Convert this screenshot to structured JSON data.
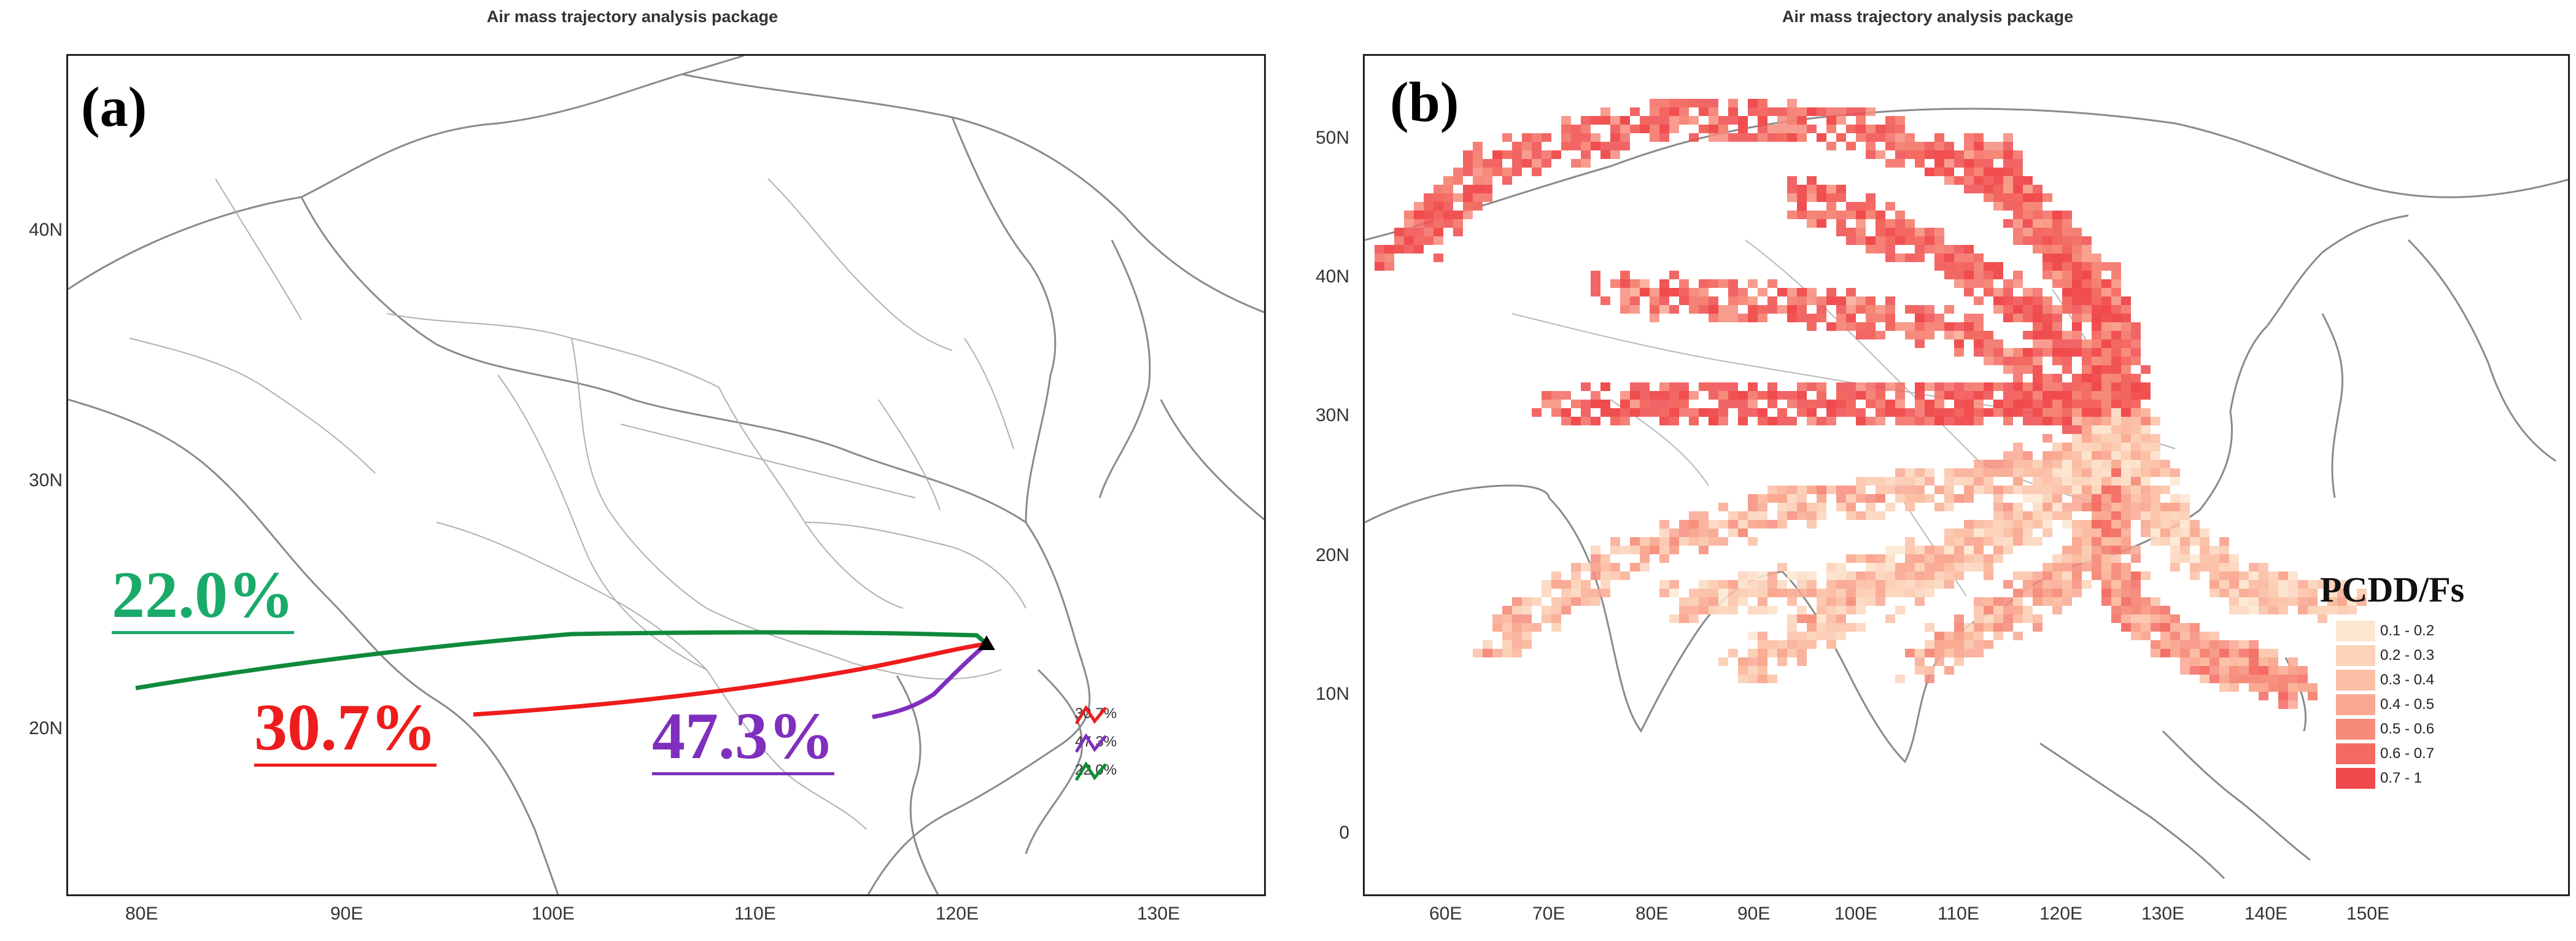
{
  "panel_a": {
    "title": "Air mass trajectory analysis package",
    "label": "(a)",
    "x_ticks": [
      "80E",
      "90E",
      "100E",
      "110E",
      "120E",
      "130E"
    ],
    "y_ticks": [
      "20N",
      "30N",
      "40N"
    ],
    "clusters": [
      {
        "name": "30.7%",
        "color": "#ee1c1c",
        "legend": "30.7%"
      },
      {
        "name": "47.3%",
        "color": "#7f2fbe",
        "legend": "47.3%"
      },
      {
        "name": "22.0%",
        "color": "#0f8a3a",
        "legend": "22.0%"
      }
    ],
    "annotation_colors": {
      "c1": "#ee1c1c",
      "c2": "#7f2fbe",
      "c3": "#1aaa6a"
    }
  },
  "panel_b": {
    "title": "Air mass trajectory analysis package",
    "label": "(b)",
    "x_ticks": [
      "60E",
      "70E",
      "80E",
      "90E",
      "100E",
      "110E",
      "120E",
      "130E",
      "140E",
      "150E"
    ],
    "y_ticks": [
      "0",
      "10N",
      "20N",
      "30N",
      "40N",
      "50N"
    ],
    "legend_title": "PCDD/Fs",
    "legend": [
      {
        "range": "0.1 - 0.2",
        "color": "#fde7d1"
      },
      {
        "range": "0.2 - 0.3",
        "color": "#fcd3bb"
      },
      {
        "range": "0.3 - 0.4",
        "color": "#fbbfa6"
      },
      {
        "range": "0.4 - 0.5",
        "color": "#f9a790"
      },
      {
        "range": "0.5 - 0.6",
        "color": "#f68b7a"
      },
      {
        "range": "0.6 - 0.7",
        "color": "#f36a62"
      },
      {
        "range": "0.7 - 1",
        "color": "#f04a4c"
      }
    ]
  },
  "endpoint_marker": "receptor-site"
}
